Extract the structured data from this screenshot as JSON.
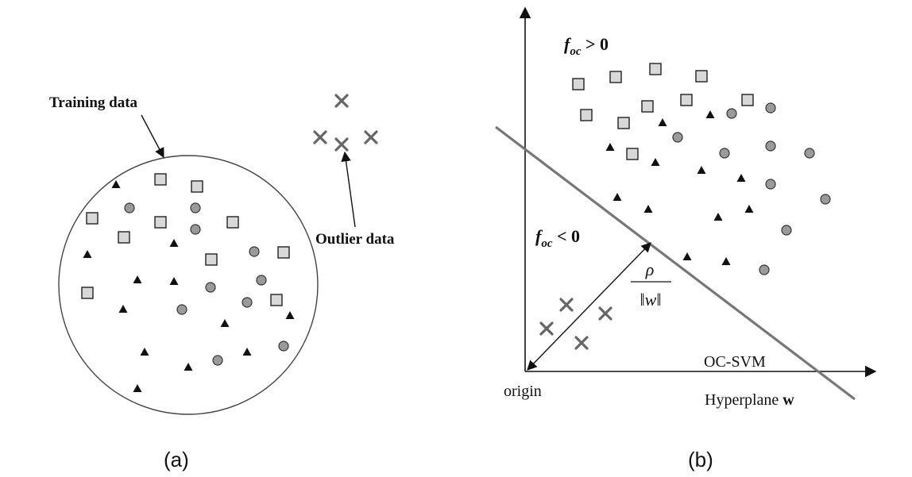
{
  "panel_a": {
    "training_label": "Training data",
    "outlier_label": "Outlier data",
    "caption": "(a)"
  },
  "panel_b": {
    "f_pos_base": "f",
    "f_pos_sub": "oc",
    "f_pos_rel": " > 0",
    "f_neg_base": "f",
    "f_neg_sub": "oc",
    "f_neg_rel": " < 0",
    "rho": "ρ",
    "norm_w": "‖w‖",
    "origin_label": "origin",
    "ocsvm_label": "OC-SVM",
    "hyperplane_text": "Hyperplane ",
    "hyperplane_w": "w",
    "caption": "(b)"
  },
  "markers": {
    "square": "gray-square",
    "circle": "gray-circle",
    "triangle": "black-triangle",
    "cross": "gray-cross"
  },
  "colors": {
    "square_fill": "#d8d8d8",
    "circle_fill": "#9a9a9a",
    "triangle_fill": "#111111",
    "cross_stroke": "#666666",
    "hyperplane_stroke": "#777777"
  }
}
